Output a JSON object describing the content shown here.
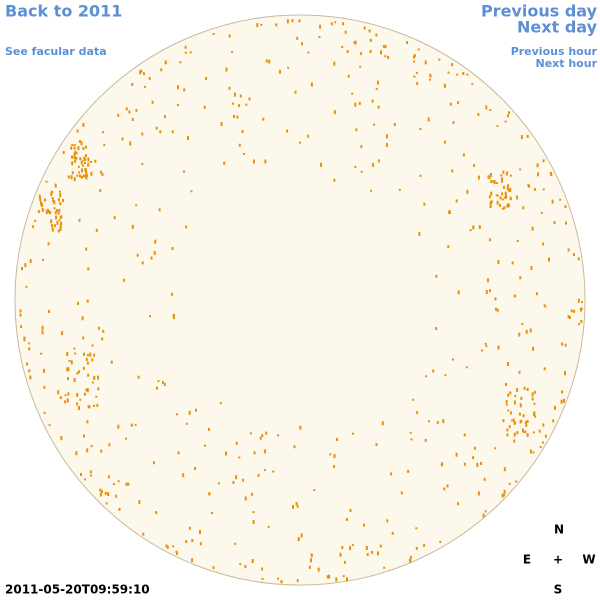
{
  "nav": {
    "back": "Back to 2011",
    "facular": "See facular data",
    "prev_day": "Previous day",
    "next_day": "Next day",
    "prev_hour": "Previous hour",
    "next_hour": "Next hour"
  },
  "timestamp": "2011-05-20T09:59:10",
  "compass": {
    "north": "N",
    "east": "E",
    "center": "+",
    "west": "W",
    "south": "S"
  }
}
